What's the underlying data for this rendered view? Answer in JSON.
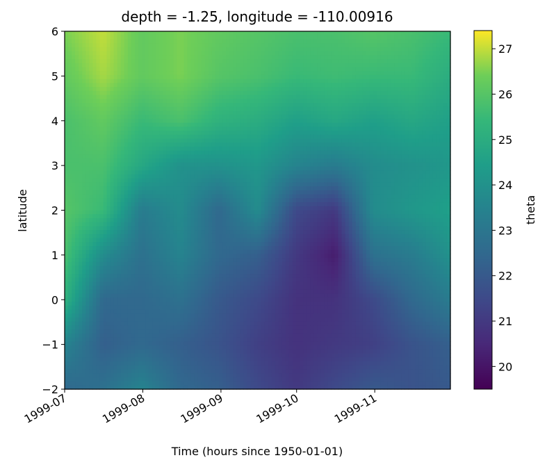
{
  "chart_data": {
    "type": "heatmap",
    "title": "depth = -1.25, longitude = -110.00916",
    "xlabel": "Time (hours since 1950-01-01)",
    "ylabel": "latitude",
    "colorbar_label": "theta",
    "colormap": "viridis",
    "x_range": [
      "1999-07-01",
      "1999-12-01"
    ],
    "x_ticks": [
      "1999-07",
      "1999-08",
      "1999-09",
      "1999-10",
      "1999-11"
    ],
    "ylim": [
      -2,
      6
    ],
    "y_ticks": [
      "−2",
      "−1",
      "0",
      "1",
      "2",
      "3",
      "4",
      "5",
      "6"
    ],
    "color_range": [
      19.5,
      27.4
    ],
    "colorbar_ticks": [
      "20",
      "21",
      "22",
      "23",
      "24",
      "25",
      "26",
      "27"
    ],
    "latitudes": [
      6,
      5,
      4,
      3,
      2,
      1,
      0,
      -1,
      -2
    ],
    "times": [
      "1999-07-01",
      "1999-07-15",
      "1999-07-31",
      "1999-08-15",
      "1999-08-31",
      "1999-09-15",
      "1999-09-30",
      "1999-10-15",
      "1999-10-31",
      "1999-11-15",
      "1999-11-30"
    ],
    "values": [
      [
        26.5,
        27.0,
        26.2,
        26.5,
        26.2,
        26.0,
        25.8,
        25.8,
        26.0,
        25.8,
        25.5
      ],
      [
        26.2,
        26.8,
        26.2,
        26.5,
        26.0,
        25.8,
        25.5,
        25.6,
        25.5,
        25.5,
        25.0
      ],
      [
        25.8,
        26.2,
        25.5,
        25.8,
        25.2,
        25.0,
        24.5,
        24.8,
        24.5,
        24.8,
        24.5
      ],
      [
        25.8,
        25.8,
        24.8,
        24.0,
        24.0,
        24.2,
        23.5,
        23.2,
        23.8,
        24.0,
        24.2
      ],
      [
        26.0,
        25.5,
        23.2,
        23.8,
        22.5,
        23.8,
        21.5,
        21.0,
        23.8,
        24.2,
        24.5
      ],
      [
        25.8,
        23.8,
        22.8,
        23.5,
        22.5,
        22.2,
        21.0,
        20.2,
        22.8,
        23.2,
        24.0
      ],
      [
        25.2,
        22.5,
        22.5,
        22.8,
        22.0,
        21.5,
        20.8,
        20.8,
        21.5,
        22.5,
        23.2
      ],
      [
        23.5,
        22.2,
        22.5,
        22.2,
        21.8,
        21.2,
        20.8,
        21.0,
        21.2,
        21.8,
        22.2
      ],
      [
        22.5,
        22.8,
        23.5,
        22.5,
        22.2,
        21.5,
        21.0,
        21.5,
        22.0,
        21.8,
        22.0
      ]
    ]
  }
}
